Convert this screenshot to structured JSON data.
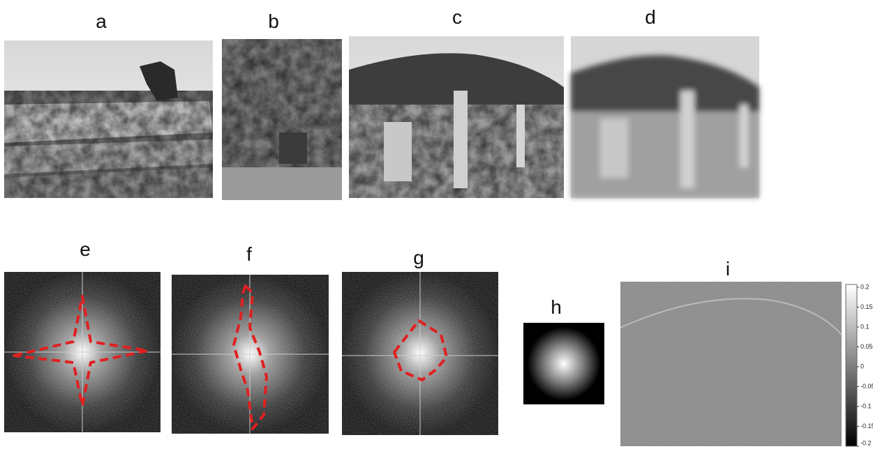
{
  "panels": [
    {
      "label": "a"
    },
    {
      "label": "b"
    },
    {
      "label": "c"
    },
    {
      "label": "d"
    },
    {
      "label": "e"
    },
    {
      "label": "f"
    },
    {
      "label": "g"
    },
    {
      "label": "h"
    },
    {
      "label": "i"
    }
  ],
  "colorbar": {
    "range": [
      -0.2,
      0.2
    ],
    "ticks": [
      0.2,
      0.15,
      0.1,
      0.05,
      0,
      -0.05,
      -0.1,
      -0.15,
      -0.2
    ]
  }
}
